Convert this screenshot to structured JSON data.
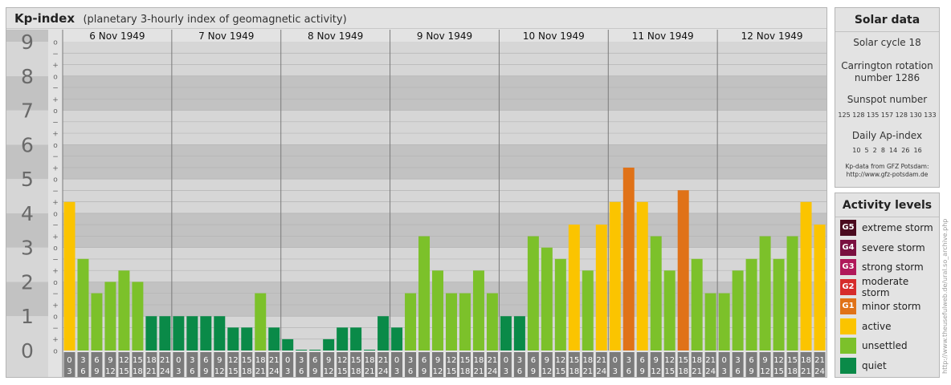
{
  "header": {
    "title": "Kp-index",
    "subtitle": "(planetary 3-hourly index of geomagnetic activity)"
  },
  "chart_data": {
    "type": "bar",
    "ylim": [
      0,
      9
    ],
    "y_major_ticks": [
      "0",
      "1",
      "2",
      "3",
      "4",
      "5",
      "6",
      "7",
      "8",
      "9"
    ],
    "y_minor_marks": [
      "o",
      "+",
      "−",
      "o",
      "+",
      "−",
      "o",
      "+",
      "−",
      "o",
      "+",
      "−",
      "o",
      "+",
      "−",
      "o",
      "+",
      "−",
      "o",
      "+",
      "−",
      "o",
      "+",
      "−",
      "o",
      "+",
      "−",
      "o"
    ],
    "days": [
      "6 Nov 1949",
      "7 Nov 1949",
      "8 Nov 1949",
      "9 Nov 1949",
      "10 Nov 1949",
      "11 Nov 1949",
      "12 Nov 1949"
    ],
    "interval_top": [
      "0",
      "3",
      "6",
      "9",
      "12",
      "15",
      "18",
      "21"
    ],
    "interval_bottom": [
      "3",
      "6",
      "9",
      "12",
      "15",
      "18",
      "21",
      "24"
    ],
    "values": [
      4.33,
      2.67,
      1.67,
      2.0,
      2.33,
      2.0,
      1.0,
      1.0,
      1.0,
      1.0,
      1.0,
      1.0,
      0.67,
      0.67,
      1.67,
      0.67,
      0.33,
      0.0,
      0.0,
      0.33,
      0.67,
      0.67,
      0.0,
      1.0,
      0.67,
      1.67,
      3.33,
      2.33,
      1.67,
      1.67,
      2.33,
      1.67,
      1.0,
      1.0,
      3.33,
      3.0,
      2.67,
      3.67,
      2.33,
      3.67,
      4.33,
      5.33,
      4.33,
      3.33,
      2.33,
      4.67,
      2.67,
      1.67,
      1.67,
      2.33,
      2.67,
      3.33,
      2.67,
      3.33,
      4.33,
      3.67
    ]
  },
  "solar": {
    "heading": "Solar data",
    "cycle": "Solar cycle 18",
    "carrington_1": "Carrington rotation",
    "carrington_2": "number 1286",
    "sunspot_heading": "Sunspot number",
    "sunspot_values": "125 128 135 157 128 130 133",
    "ap_heading": "Daily Ap-index",
    "ap_values": "10  5  2  8  14  26  16",
    "source_1": "Kp-data from GFZ Potsdam:",
    "source_2": "http://www.gfz-potsdam.de"
  },
  "activity": {
    "heading": "Activity levels",
    "levels": [
      {
        "code": "G5",
        "label": "extreme storm",
        "color": "#4a0b1f"
      },
      {
        "code": "G4",
        "label": "severe storm",
        "color": "#7a1040"
      },
      {
        "code": "G3",
        "label": "strong storm",
        "color": "#b0185a"
      },
      {
        "code": "G2",
        "label": "moderate storm",
        "color": "#d62b2b"
      },
      {
        "code": "G1",
        "label": "minor storm",
        "color": "#e07218"
      },
      {
        "code": "",
        "label": "active",
        "color": "#fbc400"
      },
      {
        "code": "",
        "label": "unsettled",
        "color": "#7cc12a"
      },
      {
        "code": "",
        "label": "quiet",
        "color": "#0a8a48"
      }
    ]
  },
  "credit": "http://www.theusefulweb.de/ural.so_archive.php"
}
